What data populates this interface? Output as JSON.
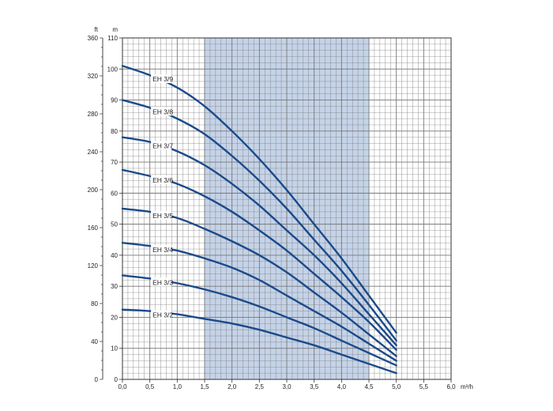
{
  "chart_data": {
    "type": "line",
    "x_unit": "m³/h",
    "y_unit_primary": "m",
    "y_unit_secondary": "ft",
    "xlim": [
      0,
      6
    ],
    "ylim": [
      0,
      110
    ],
    "ylim_secondary": [
      0,
      360
    ],
    "x_ticks": [
      "0,0",
      "0,5",
      "1,0",
      "1,5",
      "2,0",
      "2,5",
      "3,0",
      "3,5",
      "4,0",
      "4,5",
      "5,0",
      "5,5",
      "6,0"
    ],
    "y_ticks_m": [
      "0",
      "10",
      "20",
      "30",
      "40",
      "50",
      "60",
      "70",
      "80",
      "90",
      "100",
      "110"
    ],
    "y_ticks_ft": [
      "0",
      "40",
      "80",
      "120",
      "160",
      "200",
      "240",
      "280",
      "320",
      "360"
    ],
    "band": {
      "x_from": 1.5,
      "x_to": 4.5,
      "color": "#c5d3e8"
    },
    "grid": true,
    "curve_color": "#1a4a8a",
    "series": [
      {
        "name": "EH 3/9",
        "x": [
          0,
          0.5,
          1,
          1.5,
          2,
          2.5,
          3,
          3.5,
          4,
          4.5,
          5
        ],
        "y": [
          101,
          98,
          94,
          88,
          80,
          71,
          61,
          50,
          39,
          27,
          15
        ]
      },
      {
        "name": "EH 3/8",
        "x": [
          0,
          0.5,
          1,
          1.5,
          2,
          2.5,
          3,
          3.5,
          4,
          4.5,
          5
        ],
        "y": [
          90,
          87.5,
          84,
          79,
          72,
          64,
          55,
          45,
          35,
          24,
          12.5
        ]
      },
      {
        "name": "EH 3/7",
        "x": [
          0,
          0.5,
          1,
          1.5,
          2,
          2.5,
          3,
          3.5,
          4,
          4.5,
          5
        ],
        "y": [
          78,
          76.5,
          73.5,
          69,
          63,
          56,
          48,
          40,
          31,
          21,
          11
        ]
      },
      {
        "name": "EH 3/6",
        "x": [
          0,
          0.5,
          1,
          1.5,
          2,
          2.5,
          3,
          3.5,
          4,
          4.5,
          5
        ],
        "y": [
          67.5,
          65.5,
          63,
          59,
          54,
          48,
          41.5,
          34,
          26.5,
          18.5,
          9.5
        ]
      },
      {
        "name": "EH 3/5",
        "x": [
          0,
          0.5,
          1,
          1.5,
          2,
          2.5,
          3,
          3.5,
          4,
          4.5,
          5
        ],
        "y": [
          55,
          54,
          52,
          48.5,
          44.5,
          40,
          34.5,
          28,
          21.5,
          14.5,
          7.5
        ]
      },
      {
        "name": "EH 3/4",
        "x": [
          0,
          0.5,
          1,
          1.5,
          2,
          2.5,
          3,
          3.5,
          4,
          4.5,
          5
        ],
        "y": [
          44,
          43,
          41.5,
          39,
          36,
          32,
          27,
          22,
          17,
          11.5,
          6
        ]
      },
      {
        "name": "EH 3/3",
        "x": [
          0,
          0.5,
          1,
          1.5,
          2,
          2.5,
          3,
          3.5,
          4,
          4.5,
          5
        ],
        "y": [
          33.5,
          32.5,
          31,
          29,
          26.5,
          23.5,
          20,
          16.5,
          12.5,
          8.5,
          4.5
        ]
      },
      {
        "name": "EH 3/2",
        "x": [
          0,
          0.5,
          1,
          1.5,
          2,
          2.5,
          3,
          3.5,
          4,
          4.5,
          5
        ],
        "y": [
          22.5,
          22,
          21,
          19.5,
          18,
          16,
          13.5,
          11,
          8,
          5,
          2
        ]
      }
    ]
  }
}
